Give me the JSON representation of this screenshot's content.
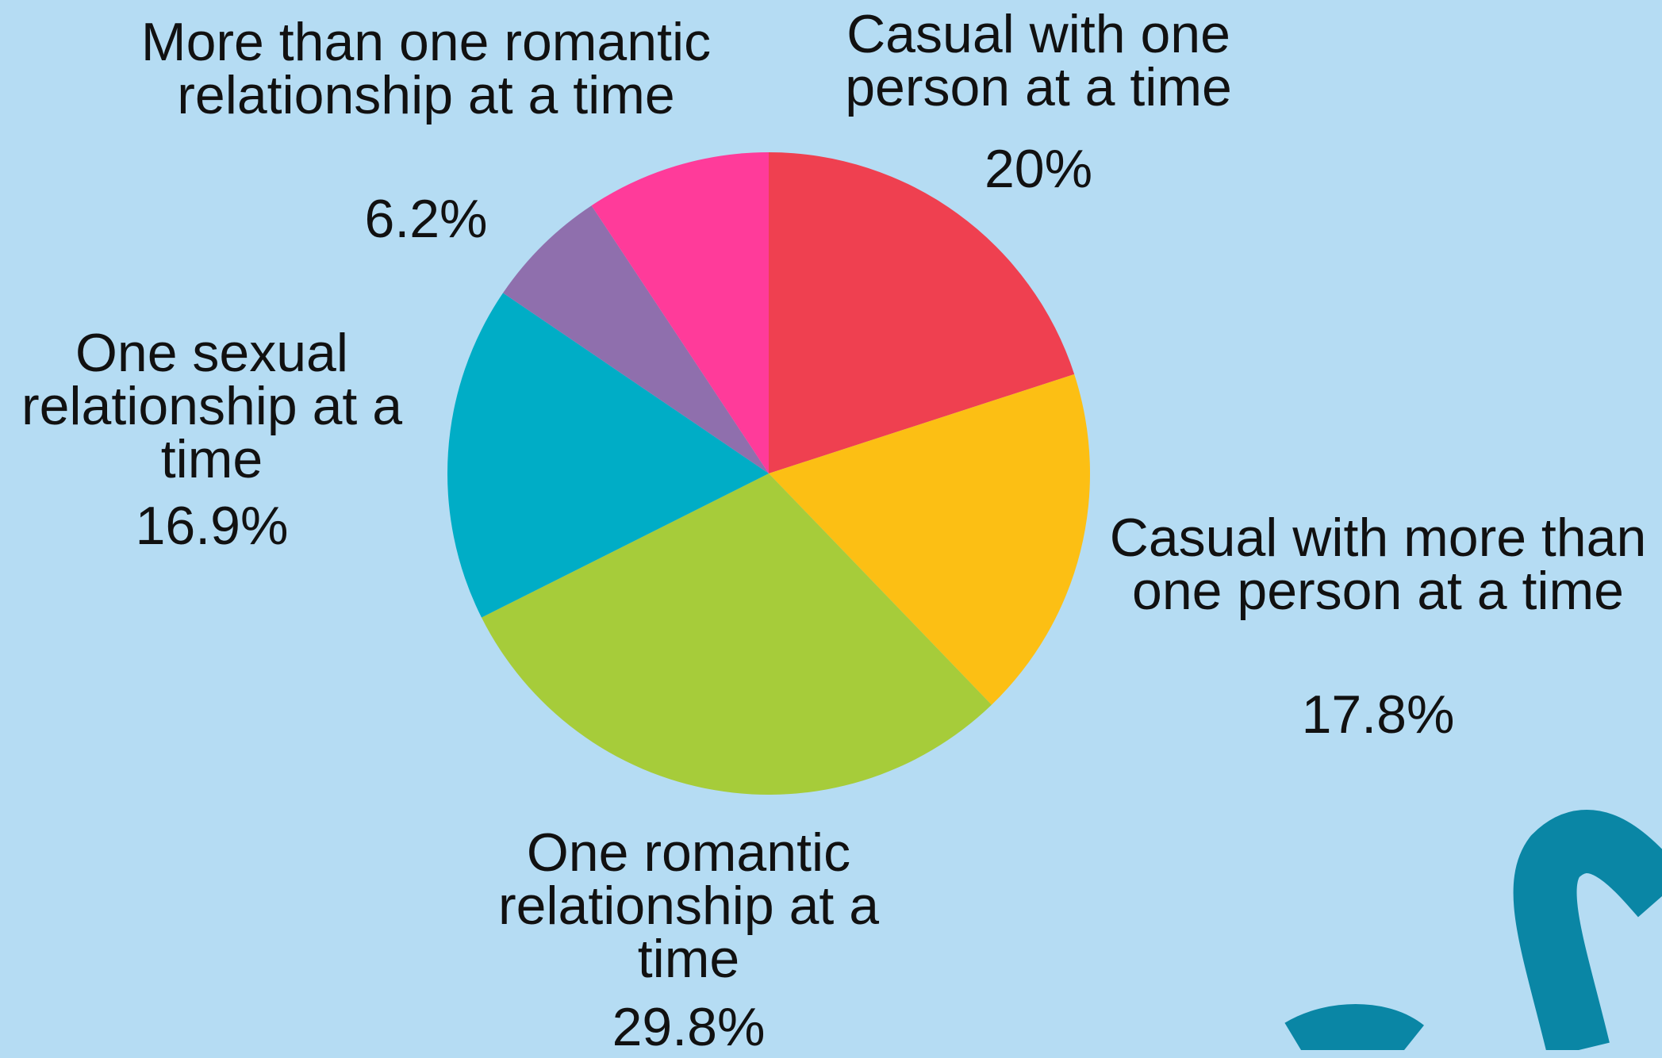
{
  "chart_data": {
    "type": "pie",
    "categories": [
      "Casual with one person at a time",
      "Casual with more than one person at a time",
      "One romantic relationship at a time",
      "One sexual relationship at a time",
      "More than one romantic relationship at a time",
      null
    ],
    "values": [
      20,
      17.8,
      29.8,
      16.9,
      6.2,
      9.3
    ],
    "value_labels": [
      "20%",
      "17.8%",
      "29.8%",
      "16.9%",
      "6.2%",
      null
    ],
    "colors": [
      "#ef4050",
      "#fcbf14",
      "#a6cc3a",
      "#00adc6",
      "#8f6fad",
      "#ff3b9a"
    ]
  }
}
